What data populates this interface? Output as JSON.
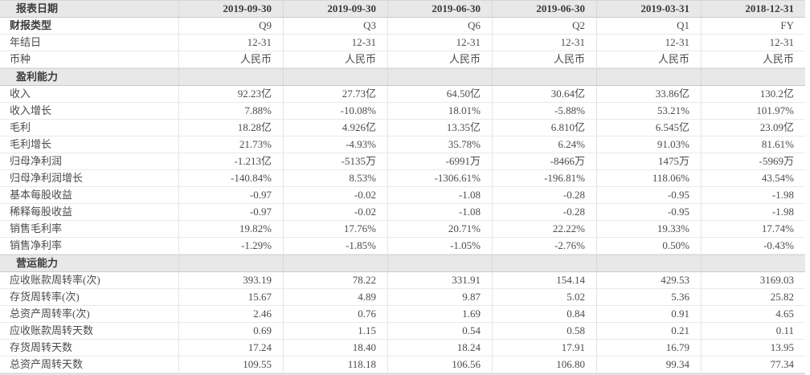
{
  "accent_colors": {
    "row_band_bg": "#e8e8e8",
    "text": "#4c4c4c",
    "bold_text": "#3b3b3b",
    "grid_line": "#e4e4e4",
    "band_border": "#c9c9c9"
  },
  "table": {
    "rows": [
      {
        "type": "header",
        "bold_label": true,
        "label": "报表日期",
        "values": [
          "2019-09-30",
          "2019-09-30",
          "2019-06-30",
          "2019-06-30",
          "2019-03-31",
          "2018-12-31"
        ]
      },
      {
        "type": "data",
        "bold_label": true,
        "label": "财报类型",
        "values": [
          "Q9",
          "Q3",
          "Q6",
          "Q2",
          "Q1",
          "FY"
        ]
      },
      {
        "type": "data",
        "bold_label": false,
        "label": "年结日",
        "values": [
          "12-31",
          "12-31",
          "12-31",
          "12-31",
          "12-31",
          "12-31"
        ]
      },
      {
        "type": "data",
        "bold_label": false,
        "label": "币种",
        "values": [
          "人民币",
          "人民币",
          "人民币",
          "人民币",
          "人民币",
          "人民币"
        ]
      },
      {
        "type": "section",
        "bold_label": true,
        "label": "盈利能力",
        "values": [
          "",
          "",
          "",
          "",
          "",
          ""
        ]
      },
      {
        "type": "data",
        "bold_label": false,
        "label": "收入",
        "values": [
          "92.23亿",
          "27.73亿",
          "64.50亿",
          "30.64亿",
          "33.86亿",
          "130.2亿"
        ]
      },
      {
        "type": "data",
        "bold_label": false,
        "label": "收入增长",
        "values": [
          "7.88%",
          "-10.08%",
          "18.01%",
          "-5.88%",
          "53.21%",
          "101.97%"
        ]
      },
      {
        "type": "data",
        "bold_label": false,
        "label": "毛利",
        "values": [
          "18.28亿",
          "4.926亿",
          "13.35亿",
          "6.810亿",
          "6.545亿",
          "23.09亿"
        ]
      },
      {
        "type": "data",
        "bold_label": false,
        "label": "毛利增长",
        "values": [
          "21.73%",
          "-4.93%",
          "35.78%",
          "6.24%",
          "91.03%",
          "81.61%"
        ]
      },
      {
        "type": "data",
        "bold_label": false,
        "label": "归母净利润",
        "values": [
          "-1.213亿",
          "-5135万",
          "-6991万",
          "-8466万",
          "1475万",
          "-5969万"
        ]
      },
      {
        "type": "data",
        "bold_label": false,
        "label": "归母净利润增长",
        "values": [
          "-140.84%",
          "8.53%",
          "-1306.61%",
          "-196.81%",
          "118.06%",
          "43.54%"
        ]
      },
      {
        "type": "data",
        "bold_label": false,
        "label": "基本每股收益",
        "values": [
          "-0.97",
          "-0.02",
          "-1.08",
          "-0.28",
          "-0.95",
          "-1.98"
        ]
      },
      {
        "type": "data",
        "bold_label": false,
        "label": "稀释每股收益",
        "values": [
          "-0.97",
          "-0.02",
          "-1.08",
          "-0.28",
          "-0.95",
          "-1.98"
        ]
      },
      {
        "type": "data",
        "bold_label": false,
        "label": "销售毛利率",
        "values": [
          "19.82%",
          "17.76%",
          "20.71%",
          "22.22%",
          "19.33%",
          "17.74%"
        ]
      },
      {
        "type": "data",
        "bold_label": false,
        "label": "销售净利率",
        "values": [
          "-1.29%",
          "-1.85%",
          "-1.05%",
          "-2.76%",
          "0.50%",
          "-0.43%"
        ]
      },
      {
        "type": "section",
        "bold_label": true,
        "label": "营运能力",
        "values": [
          "",
          "",
          "",
          "",
          "",
          ""
        ]
      },
      {
        "type": "data",
        "bold_label": false,
        "label": "应收账款周转率(次)",
        "values": [
          "393.19",
          "78.22",
          "331.91",
          "154.14",
          "429.53",
          "3169.03"
        ]
      },
      {
        "type": "data",
        "bold_label": false,
        "label": "存货周转率(次)",
        "values": [
          "15.67",
          "4.89",
          "9.87",
          "5.02",
          "5.36",
          "25.82"
        ]
      },
      {
        "type": "data",
        "bold_label": false,
        "label": "总资产周转率(次)",
        "values": [
          "2.46",
          "0.76",
          "1.69",
          "0.84",
          "0.91",
          "4.65"
        ]
      },
      {
        "type": "data",
        "bold_label": false,
        "label": "应收账款周转天数",
        "values": [
          "0.69",
          "1.15",
          "0.54",
          "0.58",
          "0.21",
          "0.11"
        ]
      },
      {
        "type": "data",
        "bold_label": false,
        "label": "存货周转天数",
        "values": [
          "17.24",
          "18.40",
          "18.24",
          "17.91",
          "16.79",
          "13.95"
        ]
      },
      {
        "type": "data",
        "bold_label": false,
        "label": "总资产周转天数",
        "values": [
          "109.55",
          "118.18",
          "106.56",
          "106.80",
          "99.34",
          "77.34"
        ]
      }
    ]
  }
}
